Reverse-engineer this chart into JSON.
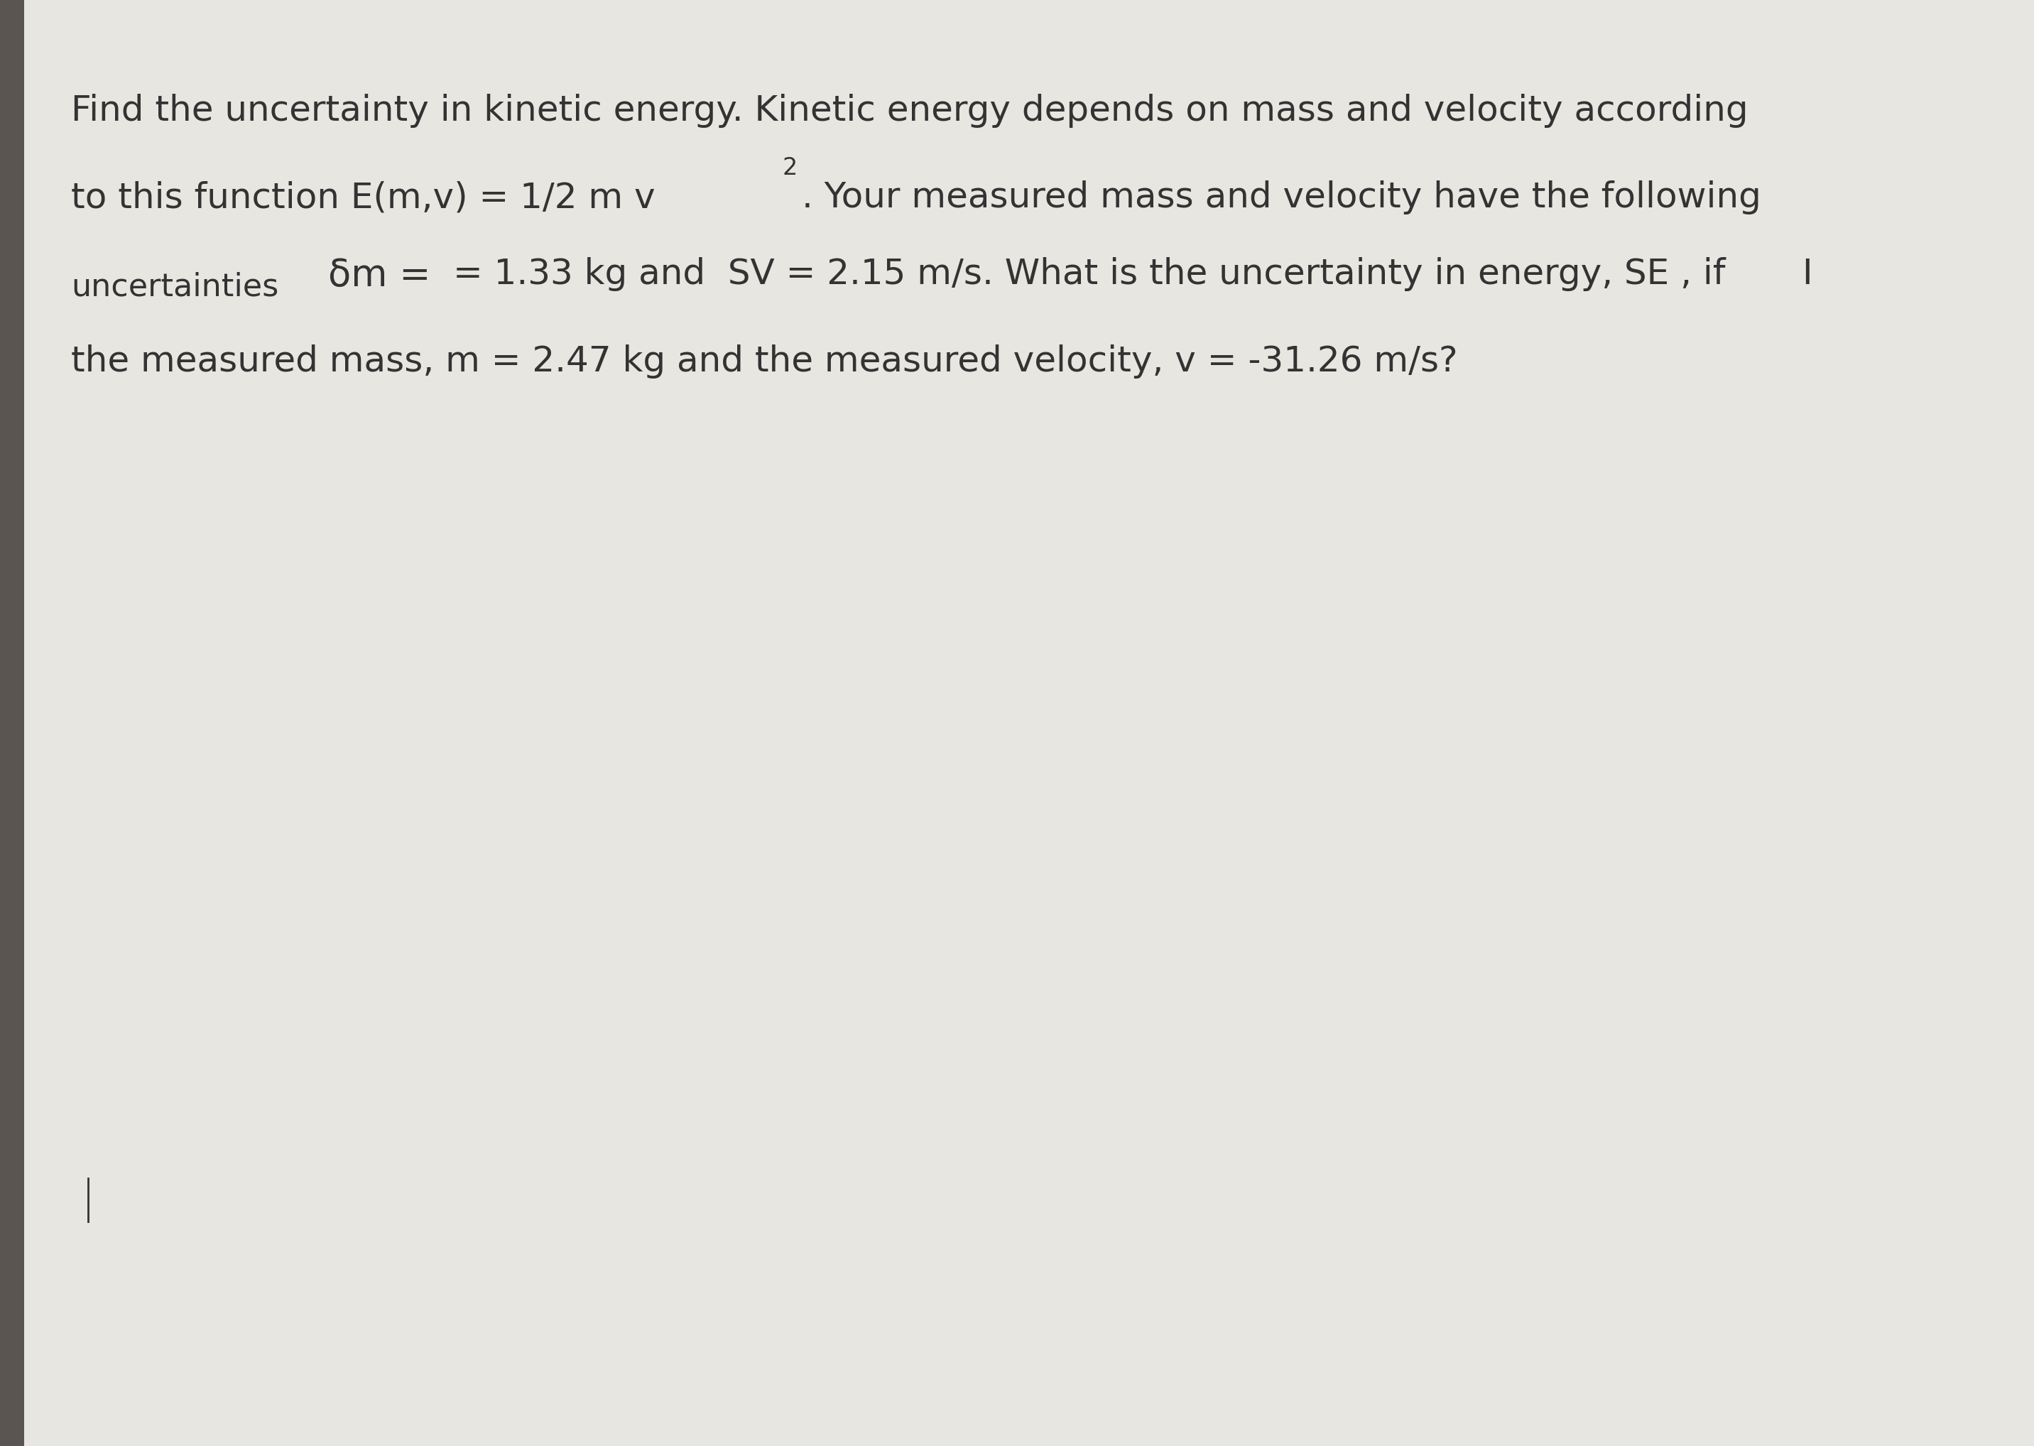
{
  "background_color": "#e8e6e0",
  "left_shadow_color": "#5a5550",
  "text_color": "#333333",
  "line1": "Find the uncertainty in kinetic energy. Kinetic energy depends on mass and velocity according",
  "line2a": "to this function E(m,v) = 1/2 m v",
  "line2_super": "2",
  "line2b": ". Your measured mass and velocity have the following",
  "line3a_left": "uncertainties",
  "line3a_delta": "δm =",
  "line3a_main": "= 1.33 kg and  SV = 2.15 m/s. What is the uncertainty in energy, SE , if",
  "line3a_cursor": "I",
  "line4": "the measured mass, m = 2.47 kg and the measured velocity, v = -31.26 m/s?",
  "font_size": 36,
  "font_size_super": 24,
  "font_size_small": 32
}
